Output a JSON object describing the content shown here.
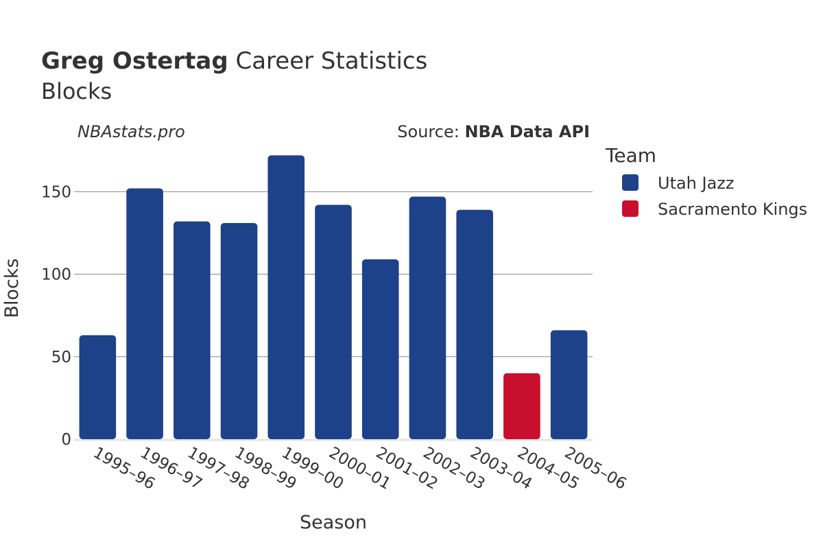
{
  "title": {
    "player_name": "Greg Ostertag",
    "suffix": " Career Statistics",
    "subtitle": "Blocks"
  },
  "credits": {
    "site": "NBAstats.pro",
    "source_prefix": "Source: ",
    "source_name": "NBA Data API"
  },
  "legend": {
    "title": "Team",
    "items": [
      {
        "label": "Utah Jazz",
        "color": "#1d428a"
      },
      {
        "label": "Sacramento Kings",
        "color": "#c8102e"
      }
    ]
  },
  "chart_data": {
    "type": "bar",
    "title": "Greg Ostertag Career Statistics",
    "subtitle": "Blocks",
    "xlabel": "Season",
    "ylabel": "Blocks",
    "ylim": [
      0,
      178
    ],
    "yticks": [
      0,
      50,
      100,
      150
    ],
    "grid": true,
    "legend_position": "right",
    "categories": [
      "1995–96",
      "1996–97",
      "1997–98",
      "1998–99",
      "1999–00",
      "2000–01",
      "2001–02",
      "2002–03",
      "2003–04",
      "2004–05",
      "2005–06"
    ],
    "series": [
      {
        "name": "Utah Jazz",
        "color": "#1d428a",
        "values": [
          63,
          152,
          132,
          131,
          172,
          142,
          109,
          147,
          139,
          null,
          66
        ]
      },
      {
        "name": "Sacramento Kings",
        "color": "#c8102e",
        "values": [
          null,
          null,
          null,
          null,
          null,
          null,
          null,
          null,
          null,
          40,
          null
        ]
      }
    ]
  }
}
